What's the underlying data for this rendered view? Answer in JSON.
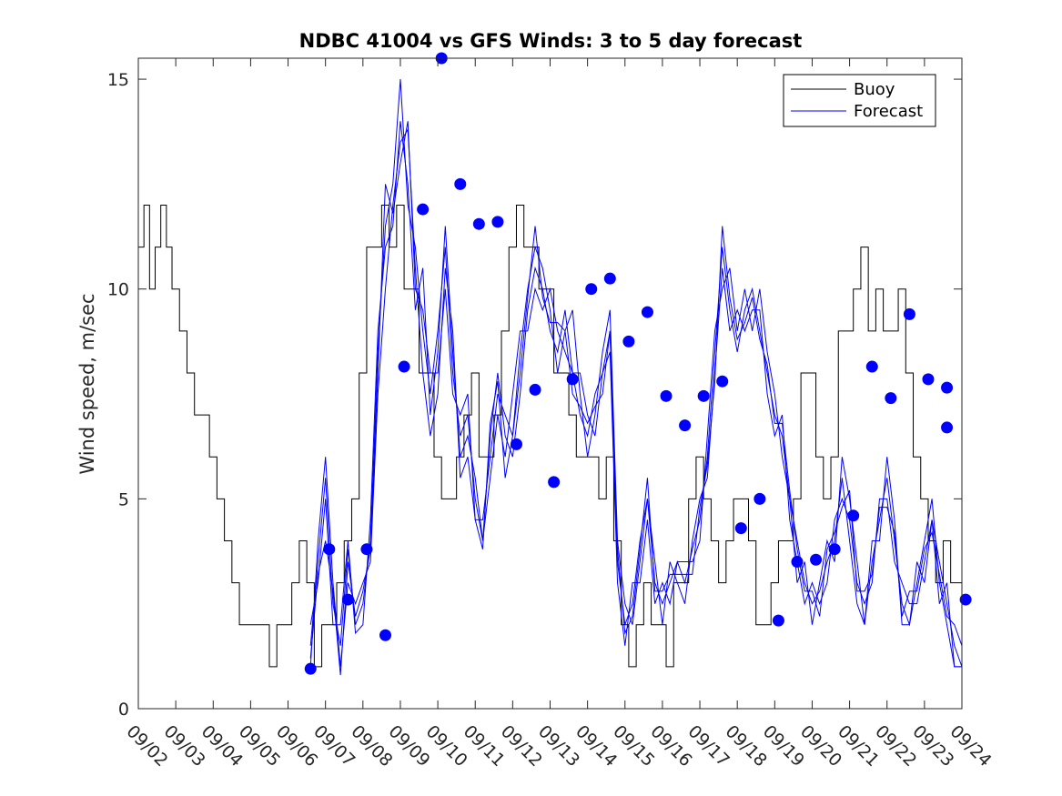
{
  "chart_data": {
    "type": "line",
    "title": "NDBC 41004 vs GFS Winds: 3 to 5 day forecast",
    "xlabel": "",
    "ylabel": "Wind speed, m/sec",
    "xlim": [
      0,
      22
    ],
    "ylim": [
      0,
      15.5
    ],
    "x_ticks": [
      0,
      1,
      2,
      3,
      4,
      5,
      6,
      7,
      8,
      9,
      10,
      11,
      12,
      13,
      14,
      15,
      16,
      17,
      18,
      19,
      20,
      21,
      22
    ],
    "x_tick_labels": [
      "09/02",
      "09/03",
      "09/04",
      "09/05",
      "09/06",
      "09/07",
      "09/08",
      "09/09",
      "09/10",
      "09/11",
      "09/12",
      "09/13",
      "09/14",
      "09/15",
      "09/16",
      "09/17",
      "09/18",
      "09/19",
      "09/20",
      "09/21",
      "09/22",
      "09/23",
      "09/24"
    ],
    "y_ticks": [
      0,
      5,
      10,
      15
    ],
    "y_tick_labels": [
      "0",
      "5",
      "10",
      "15"
    ],
    "grid": false,
    "legend": {
      "position": "top-right",
      "entries": [
        "Buoy",
        "Forecast"
      ]
    },
    "colors": {
      "buoy": "#000000",
      "forecast": "#0000ff",
      "markers": "#0000ff"
    },
    "series": [
      {
        "name": "Buoy",
        "x": [
          0,
          0.15,
          0.3,
          0.45,
          0.6,
          0.75,
          0.9,
          1.1,
          1.3,
          1.5,
          1.7,
          1.9,
          2.1,
          2.3,
          2.5,
          2.7,
          2.9,
          3.1,
          3.3,
          3.5,
          3.7,
          3.9,
          4.1,
          4.3,
          4.5,
          4.7,
          4.9,
          5.1,
          5.3,
          5.5,
          5.7,
          5.9,
          6.1,
          6.3,
          6.5,
          6.7,
          6.9,
          7.1,
          7.3,
          7.5,
          7.7,
          7.9,
          8.1,
          8.3,
          8.5,
          8.7,
          8.9,
          9.1,
          9.3,
          9.5,
          9.7,
          9.9,
          10.1,
          10.3,
          10.5,
          10.7,
          10.9,
          11.1,
          11.3,
          11.5,
          11.7,
          11.9,
          12.1,
          12.3,
          12.5,
          12.7,
          12.9,
          13.1,
          13.3,
          13.5,
          13.7,
          13.9,
          14.1,
          14.3,
          14.5,
          14.7,
          14.9,
          15.1,
          15.3,
          15.5,
          15.7,
          15.9,
          16.1,
          16.3,
          16.5,
          16.7,
          16.9,
          17.1,
          17.3,
          17.5,
          17.7,
          17.9,
          18.1,
          18.3,
          18.5,
          18.7,
          18.9,
          19.1,
          19.3,
          19.5,
          19.7,
          19.9,
          20.1,
          20.3,
          20.5,
          20.7,
          20.9,
          21.1,
          21.3,
          21.5,
          21.7,
          21.9,
          22
        ],
        "values": [
          11,
          12,
          10,
          11,
          12,
          11,
          10,
          9,
          8,
          7,
          7,
          6,
          5,
          4,
          3,
          2,
          2,
          2,
          2,
          1,
          2,
          2,
          3,
          4,
          3,
          1,
          2,
          2,
          3,
          4,
          5,
          8,
          11,
          11,
          12,
          11,
          12,
          10,
          10,
          8,
          8,
          6,
          5,
          5,
          6,
          7,
          8,
          6,
          6,
          7,
          9,
          11,
          12,
          11,
          11,
          10,
          10,
          8,
          8,
          7,
          6,
          6,
          6,
          5,
          6,
          4,
          2,
          1,
          2,
          3,
          2,
          2,
          1,
          3,
          3,
          5,
          6,
          5,
          4,
          3,
          4,
          5,
          5,
          4,
          2,
          2,
          3,
          4,
          4,
          5,
          8,
          8,
          6,
          5,
          6,
          9,
          9,
          10,
          11,
          9,
          10,
          9,
          9,
          10,
          8,
          6,
          5,
          4,
          3,
          4,
          3,
          3,
          3
        ],
        "color": "#000000"
      }
    ],
    "forecast_lines": [
      {
        "x": [
          4.6,
          4.8,
          5.0,
          5.2,
          5.4,
          5.6,
          5.8,
          6.0,
          6.2,
          6.4,
          6.6,
          6.8,
          7.0,
          7.2,
          7.4,
          7.6,
          7.8,
          8.0,
          8.2,
          8.4,
          8.6,
          8.8,
          9.0,
          9.2,
          9.4,
          9.6,
          9.8,
          10.0,
          10.2,
          10.4,
          10.6,
          10.8,
          11.0,
          11.2,
          11.4,
          11.6,
          11.8,
          12.0,
          12.2,
          12.4,
          12.6,
          12.8,
          13.0,
          13.2,
          13.4,
          13.6,
          13.8,
          14.0,
          14.2,
          14.4,
          14.6,
          14.8,
          15.0,
          15.2,
          15.4,
          15.6,
          15.8,
          16.0,
          16.2,
          16.4,
          16.6,
          16.8,
          17.0,
          17.2,
          17.4,
          17.6,
          17.8,
          18.0,
          18.2,
          18.4,
          18.6,
          18.8,
          19.0,
          19.2,
          19.4,
          19.6,
          19.8,
          20.0,
          20.2,
          20.4,
          20.6,
          20.8,
          21.0,
          21.2,
          21.4,
          21.6,
          21.8,
          22.0
        ],
        "values": [
          1.5,
          3.5,
          5.5,
          2.5,
          1.5,
          3.8,
          2.0,
          2.5,
          4.0,
          8.5,
          11.5,
          12.5,
          15.0,
          12.0,
          11.0,
          9.0,
          7.5,
          9.0,
          11.0,
          8.0,
          6.5,
          7.0,
          5.0,
          4.0,
          6.5,
          8.0,
          6.5,
          6.0,
          7.5,
          9.5,
          10.5,
          10.0,
          9.0,
          8.5,
          9.5,
          8.0,
          7.0,
          6.5,
          7.5,
          8.0,
          9.0,
          3.5,
          2.0,
          2.5,
          4.0,
          5.0,
          3.0,
          2.5,
          3.0,
          3.5,
          3.0,
          3.8,
          4.5,
          6.0,
          8.5,
          11.0,
          9.5,
          8.5,
          9.5,
          10.0,
          9.0,
          8.0,
          7.0,
          6.5,
          5.0,
          4.0,
          3.0,
          2.5,
          2.8,
          3.5,
          4.0,
          5.5,
          4.0,
          2.5,
          2.0,
          3.5,
          4.5,
          5.5,
          4.0,
          2.5,
          2.0,
          3.0,
          4.0,
          5.0,
          3.0,
          2.0,
          1.0,
          1.0
        ],
        "color": "#0000ff"
      },
      {
        "x": [
          4.6,
          4.8,
          5.0,
          5.2,
          5.4,
          5.6,
          5.8,
          6.0,
          6.2,
          6.4,
          6.6,
          6.8,
          7.0,
          7.2,
          7.4,
          7.6,
          7.8,
          8.0,
          8.2,
          8.4,
          8.6,
          8.8,
          9.0,
          9.2,
          9.4,
          9.6,
          9.8,
          10.0,
          10.2,
          10.4,
          10.6,
          10.8,
          11.0,
          11.2,
          11.4,
          11.6,
          11.8,
          12.0,
          12.2,
          12.4,
          12.6,
          12.8,
          13.0,
          13.2,
          13.4,
          13.6,
          13.8,
          14.0,
          14.2,
          14.4,
          14.6,
          14.8,
          15.0,
          15.2,
          15.4,
          15.6,
          15.8,
          16.0,
          16.2,
          16.4,
          16.6,
          16.8,
          17.0,
          17.2,
          17.4,
          17.6,
          17.8,
          18.0,
          18.2,
          18.4,
          18.6,
          18.8,
          19.0,
          19.2,
          19.4,
          19.6,
          19.8,
          20.0,
          20.2,
          20.4,
          20.6,
          20.8,
          21.0,
          21.2,
          21.4,
          21.6,
          21.8,
          22.0
        ],
        "values": [
          1.0,
          4.0,
          6.0,
          3.0,
          1.0,
          3.0,
          2.5,
          3.0,
          3.5,
          7.5,
          10.0,
          12.0,
          13.5,
          13.8,
          10.5,
          8.0,
          6.5,
          7.5,
          10.5,
          9.0,
          5.5,
          6.0,
          4.5,
          4.5,
          6.0,
          7.5,
          7.0,
          6.5,
          8.5,
          10.0,
          11.0,
          10.5,
          9.5,
          8.0,
          9.0,
          9.5,
          7.5,
          6.0,
          7.0,
          8.5,
          9.5,
          4.0,
          2.5,
          2.0,
          3.5,
          5.0,
          3.5,
          2.0,
          3.5,
          3.0,
          2.5,
          4.0,
          5.0,
          5.5,
          8.0,
          10.5,
          9.0,
          9.5,
          9.0,
          9.5,
          9.5,
          7.5,
          6.5,
          7.0,
          4.5,
          3.5,
          2.5,
          3.0,
          2.5,
          3.0,
          4.5,
          5.0,
          4.5,
          3.0,
          2.5,
          3.0,
          5.0,
          5.0,
          3.5,
          3.0,
          2.5,
          2.5,
          3.5,
          4.5,
          3.5,
          2.5,
          1.5,
          1.0
        ],
        "color": "#0000ff"
      },
      {
        "x": [
          4.6,
          4.8,
          5.0,
          5.2,
          5.4,
          5.6,
          5.8,
          6.0,
          6.2,
          6.4,
          6.6,
          6.8,
          7.0,
          7.2,
          7.4,
          7.6,
          7.8,
          8.0,
          8.2,
          8.4,
          8.6,
          8.8,
          9.0,
          9.2,
          9.4,
          9.6,
          9.8,
          10.0,
          10.2,
          10.4,
          10.6,
          10.8,
          11.0,
          11.2,
          11.4,
          11.6,
          11.8,
          12.0,
          12.2,
          12.4,
          12.6,
          12.8,
          13.0,
          13.2,
          13.4,
          13.6,
          13.8,
          14.0,
          14.2,
          14.4,
          14.6,
          14.8,
          15.0,
          15.2,
          15.4,
          15.6,
          15.8,
          16.0,
          16.2,
          16.4,
          16.6,
          16.8,
          17.0,
          17.2,
          17.4,
          17.6,
          17.8,
          18.0,
          18.2,
          18.4,
          18.6,
          18.8,
          19.0,
          19.2,
          19.4,
          19.6,
          19.8,
          20.0,
          20.2,
          20.4,
          20.6,
          20.8,
          21.0,
          21.2,
          21.4,
          21.6,
          21.8,
          22.0
        ],
        "values": [
          2.0,
          3.0,
          5.0,
          2.0,
          2.0,
          4.0,
          1.8,
          2.0,
          4.5,
          9.0,
          11.0,
          11.5,
          14.0,
          12.5,
          9.5,
          10.5,
          7.0,
          8.5,
          11.5,
          8.5,
          6.0,
          6.5,
          5.5,
          4.0,
          5.5,
          7.0,
          6.0,
          7.5,
          9.0,
          9.0,
          10.0,
          9.5,
          10.0,
          9.0,
          8.5,
          8.0,
          8.0,
          7.0,
          6.5,
          8.0,
          8.5,
          3.0,
          1.5,
          3.0,
          3.0,
          4.5,
          2.5,
          3.0,
          2.5,
          3.5,
          3.5,
          3.5,
          4.0,
          6.5,
          9.0,
          10.0,
          10.5,
          9.0,
          10.0,
          9.0,
          10.0,
          8.5,
          7.5,
          6.0,
          5.0,
          3.0,
          3.5,
          2.0,
          3.0,
          4.0,
          3.5,
          6.0,
          5.0,
          3.5,
          2.0,
          4.0,
          4.0,
          6.0,
          4.5,
          2.0,
          2.0,
          3.5,
          3.0,
          4.5,
          2.5,
          3.0,
          1.0,
          1.0
        ],
        "color": "#0000ff"
      },
      {
        "x": [
          4.6,
          4.8,
          5.0,
          5.2,
          5.4,
          5.6,
          5.8,
          6.0,
          6.2,
          6.4,
          6.6,
          6.8,
          7.0,
          7.2,
          7.4,
          7.6,
          7.8,
          8.0,
          8.2,
          8.4,
          8.6,
          8.8,
          9.0,
          9.2,
          9.4,
          9.6,
          9.8,
          10.0,
          10.2,
          10.4,
          10.6,
          10.8,
          11.0,
          11.2,
          11.4,
          11.6,
          11.8,
          12.0,
          12.2,
          12.4,
          12.6,
          12.8,
          13.0,
          13.2,
          13.4,
          13.6,
          13.8,
          14.0,
          14.2,
          14.4,
          14.6,
          14.8,
          15.0,
          15.2,
          15.4,
          15.6,
          15.8,
          16.0,
          16.2,
          16.4,
          16.6,
          16.8,
          17.0,
          17.2,
          17.4,
          17.6,
          17.8,
          18.0,
          18.2,
          18.4,
          18.6,
          18.8,
          19.0,
          19.2,
          19.4,
          19.6,
          19.8,
          20.0,
          20.2,
          20.4,
          20.6,
          20.8,
          21.0,
          21.2,
          21.4,
          21.6,
          21.8,
          22.0
        ],
        "values": [
          1.2,
          3.2,
          4.0,
          2.8,
          0.8,
          3.5,
          2.2,
          2.8,
          3.8,
          8.0,
          12.5,
          11.8,
          13.0,
          14.0,
          10.0,
          9.5,
          8.0,
          8.0,
          10.0,
          7.5,
          7.0,
          7.5,
          4.5,
          3.8,
          6.8,
          7.8,
          5.5,
          6.5,
          8.0,
          9.8,
          11.5,
          9.8,
          9.2,
          9.2,
          9.0,
          7.5,
          7.2,
          6.8,
          7.2,
          7.5,
          9.0,
          3.8,
          1.8,
          2.2,
          3.8,
          5.5,
          2.8,
          2.8,
          3.2,
          3.2,
          3.2,
          3.2,
          4.8,
          5.8,
          7.8,
          11.5,
          9.8,
          8.8,
          9.2,
          9.8,
          8.8,
          8.2,
          6.8,
          6.8,
          5.2,
          3.8,
          2.8,
          2.8,
          2.2,
          3.8,
          4.2,
          4.8,
          5.2,
          2.8,
          2.8,
          3.2,
          4.8,
          4.8,
          4.2,
          2.2,
          2.8,
          2.8,
          3.8,
          4.2,
          3.2,
          2.2,
          2.0,
          1.5
        ],
        "color": "#0000ff"
      }
    ],
    "forecast_markers": {
      "x": [
        4.6,
        5.1,
        5.6,
        6.1,
        6.6,
        7.1,
        7.6,
        8.1,
        8.6,
        9.1,
        9.6,
        10.1,
        10.6,
        11.1,
        11.6,
        12.1,
        12.6,
        13.1,
        13.6,
        14.1,
        14.6,
        15.1,
        15.6,
        16.1,
        16.6,
        17.1,
        17.6,
        18.1,
        18.6,
        19.1,
        19.6,
        20.1,
        20.6,
        21.1,
        21.6
      ],
      "values": [
        0.95,
        3.8,
        2.6,
        3.8,
        1.75,
        8.15,
        11.9,
        15.5,
        12.5,
        11.55,
        11.6,
        6.3,
        7.6,
        5.4,
        7.85,
        10.0,
        10.25,
        8.75,
        9.45,
        7.45,
        6.75,
        7.45,
        7.8,
        4.3,
        5.0,
        2.1,
        3.5,
        3.55,
        3.8,
        4.6,
        8.15,
        7.4,
        9.4,
        7.85,
        7.65
      ],
      "extra_x": [
        21.6,
        22.1
      ],
      "extra_values": [
        6.7,
        2.6
      ],
      "color": "#0000ff"
    }
  }
}
